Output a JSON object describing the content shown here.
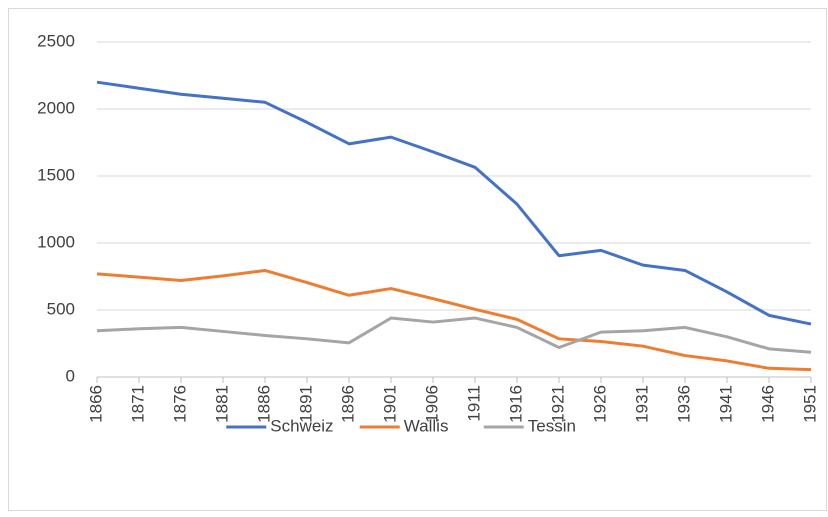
{
  "chart_data": {
    "type": "line",
    "categories": [
      "1866",
      "1871",
      "1876",
      "1881",
      "1886",
      "1891",
      "1896",
      "1901",
      "1906",
      "1911",
      "1916",
      "1921",
      "1926",
      "1931",
      "1936",
      "1941",
      "1946",
      "1951"
    ],
    "series": [
      {
        "name": "Schweiz",
        "color": "#4472c4",
        "values": [
          2200,
          2155,
          2110,
          2080,
          2050,
          1900,
          1740,
          1790,
          1680,
          1565,
          1290,
          905,
          945,
          835,
          795,
          635,
          460,
          395
        ]
      },
      {
        "name": "Wallis",
        "color": "#ed7d31",
        "values": [
          770,
          745,
          720,
          755,
          795,
          705,
          610,
          660,
          585,
          505,
          430,
          285,
          265,
          230,
          160,
          120,
          65,
          55
        ]
      },
      {
        "name": "Tessin",
        "color": "#a5a5a5",
        "values": [
          345,
          360,
          370,
          340,
          310,
          285,
          255,
          440,
          410,
          440,
          370,
          220,
          335,
          345,
          370,
          300,
          210,
          185
        ]
      }
    ],
    "ylim": [
      0,
      2500
    ],
    "yticks": [
      0,
      500,
      1000,
      1500,
      2000,
      2500
    ],
    "grid": true,
    "legend": "bottom"
  }
}
